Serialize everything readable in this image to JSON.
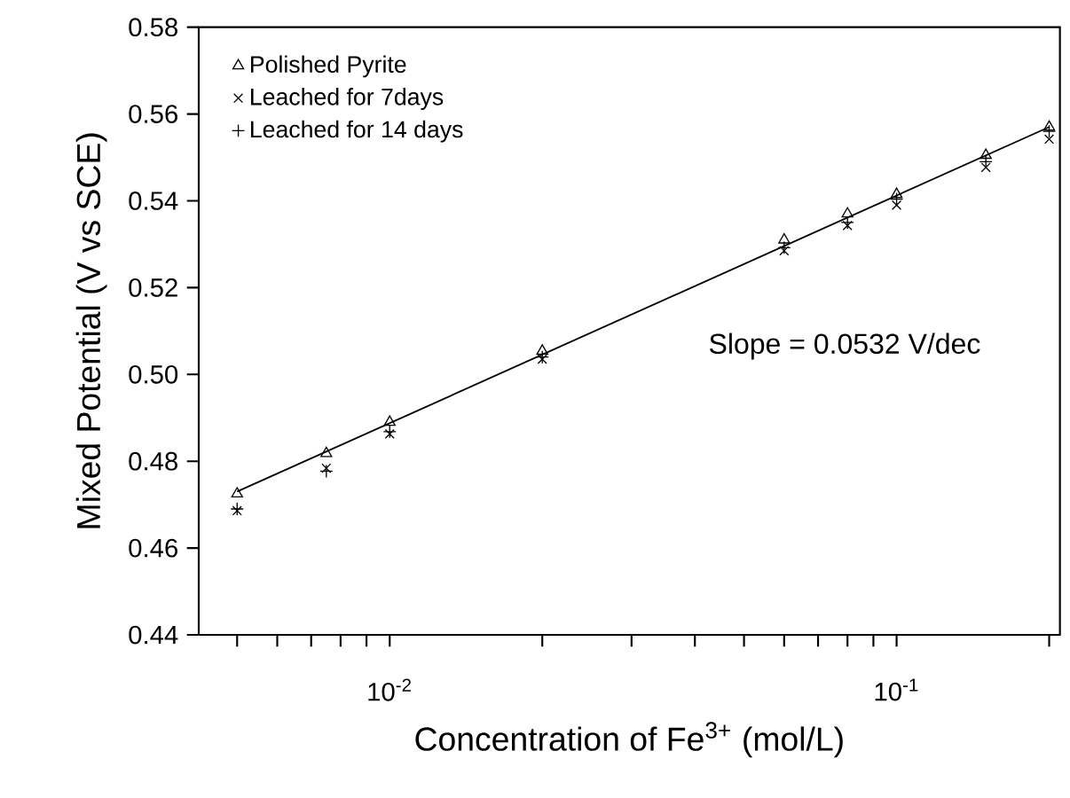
{
  "chart_data": {
    "type": "scatter",
    "xlabel": "Concentration of Fe$^{3+}$ (mol/L)",
    "ylabel": "Mixed Potential (V vs SCE)",
    "x": [
      0.005,
      0.0075,
      0.01,
      0.02,
      0.06,
      0.08,
      0.1,
      0.15,
      0.2
    ],
    "series": [
      {
        "name": "Polished Pyrite",
        "color": "#000000",
        "marker": "triangle",
        "values": [
          0.4725,
          0.4818,
          0.489,
          0.5054,
          0.531,
          0.537,
          0.5415,
          0.5505,
          0.557
        ]
      },
      {
        "name": "Leached for 7days",
        "color": "#000000",
        "marker": "cross",
        "values": [
          0.4686,
          0.4784,
          0.4863,
          0.5035,
          0.5285,
          0.5343,
          0.539,
          0.5477,
          0.5542
        ]
      },
      {
        "name": "Leached for 14 days",
        "color": "#000000",
        "marker": "plus",
        "values": [
          0.469,
          0.4777,
          0.4868,
          0.504,
          0.5292,
          0.535,
          0.5404,
          0.549,
          0.556
        ]
      },
      {
        "type": "line",
        "color": "#000000",
        "marker": "none",
        "line_style": "solid",
        "x": [
          0.005,
          0.2
        ],
        "values": [
          0.473,
          0.557
        ]
      }
    ],
    "annotations": [
      "Slope = 0.0532 V/dec"
    ],
    "log": "x",
    "legend": "top left",
    "grid": false,
    "xlim": [
      0.0042,
      0.21
    ],
    "xticks": [
      {
        "value": 0.005,
        "label": null
      },
      {
        "value": 0.006,
        "label": null
      },
      {
        "value": 0.007,
        "label": null
      },
      {
        "value": 0.008,
        "label": null
      },
      {
        "value": 0.009,
        "label": null
      },
      {
        "value": 0.01,
        "label": "10$^{-2}$"
      },
      {
        "value": 0.02,
        "label": null
      },
      {
        "value": 0.03,
        "label": null
      },
      {
        "value": 0.04,
        "label": null
      },
      {
        "value": 0.05,
        "label": null
      },
      {
        "value": 0.06,
        "label": null
      },
      {
        "value": 0.07,
        "label": null
      },
      {
        "value": 0.08,
        "label": null
      },
      {
        "value": 0.09,
        "label": null
      },
      {
        "value": 0.1,
        "label": "10$^{-1}$"
      },
      {
        "value": 0.2,
        "label": null
      }
    ],
    "ylim": [
      0.44,
      0.58
    ],
    "yticks": [
      0.44,
      0.46,
      0.48,
      {
        "value": 0.5,
        "label": "0.50"
      },
      0.52,
      0.54,
      0.56,
      0.58
    ]
  }
}
